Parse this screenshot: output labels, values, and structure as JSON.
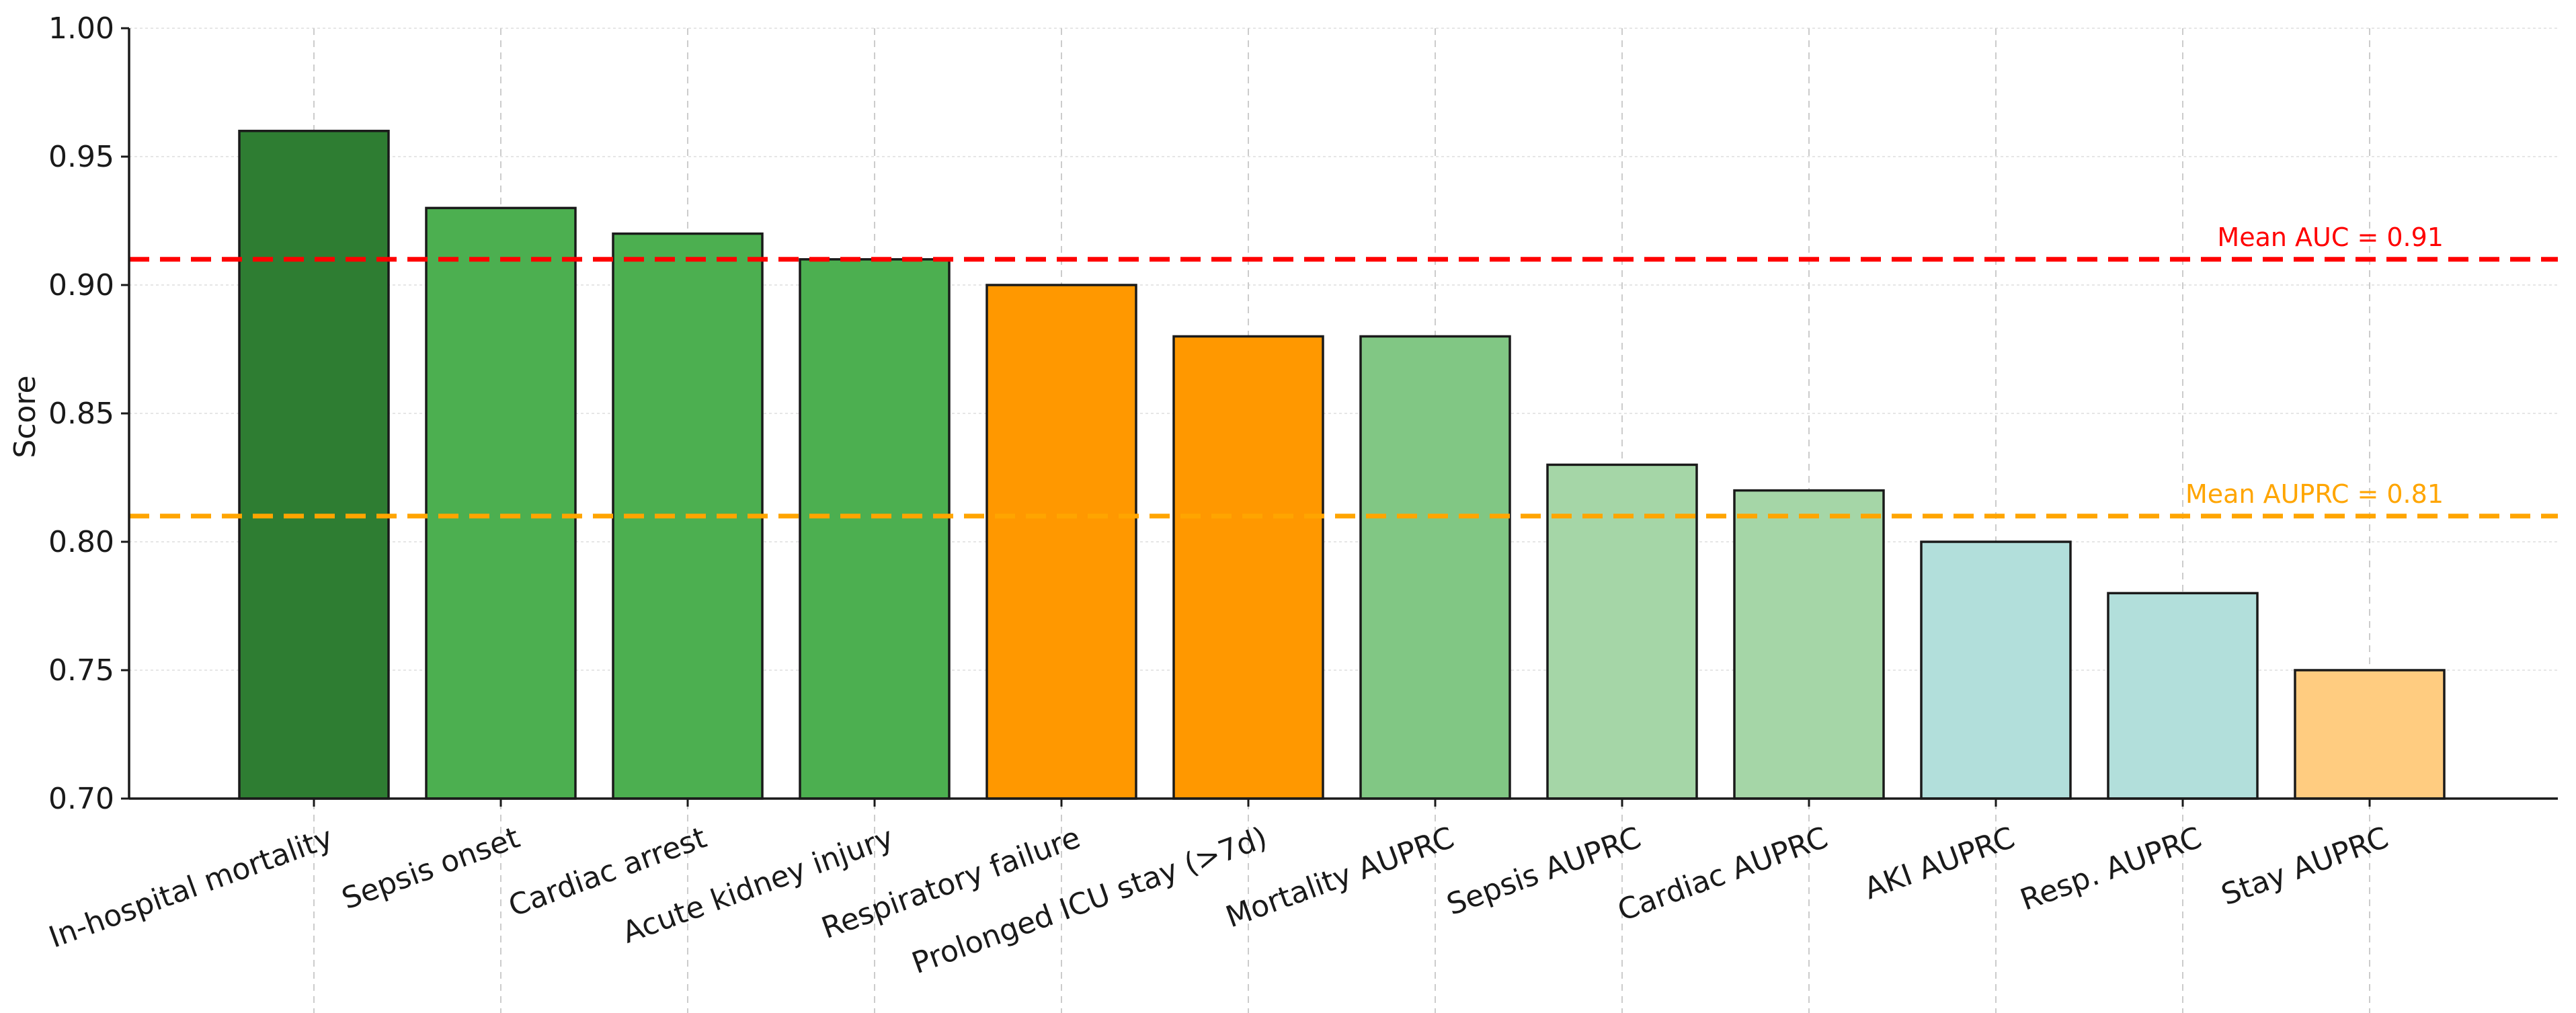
{
  "chart_data": {
    "type": "bar",
    "title": "",
    "xlabel": "",
    "ylabel": "Score",
    "ylim": [
      0.7,
      1.0
    ],
    "yticks": [
      "0.70",
      "0.75",
      "0.80",
      "0.85",
      "0.90",
      "0.95",
      "1.00"
    ],
    "grid": true,
    "categories": [
      "In-hospital mortality",
      "Sepsis onset",
      "Cardiac arrest",
      "Acute kidney injury",
      "Respiratory failure",
      "Prolonged ICU stay (>7d)",
      "Mortality AUPRC",
      "Sepsis AUPRC",
      "Cardiac AUPRC",
      "AKI AUPRC",
      "Resp. AUPRC",
      "Stay AUPRC"
    ],
    "values": [
      0.96,
      0.93,
      0.92,
      0.91,
      0.9,
      0.88,
      0.88,
      0.83,
      0.82,
      0.8,
      0.78,
      0.75
    ],
    "colors": [
      "#2e7d32",
      "#4caf50",
      "#4caf50",
      "#4caf50",
      "#ff9800",
      "#ff9800",
      "#81c784",
      "#a5d6a7",
      "#a5d6a7",
      "#b2dfdb",
      "#b2dfdb",
      "#ffcc80"
    ],
    "reference_lines": [
      {
        "label": "Mean AUC = 0.91",
        "value": 0.91,
        "color": "#ff0000"
      },
      {
        "label": "Mean AUPRC = 0.81",
        "value": 0.81,
        "color": "#ffa500"
      }
    ]
  }
}
